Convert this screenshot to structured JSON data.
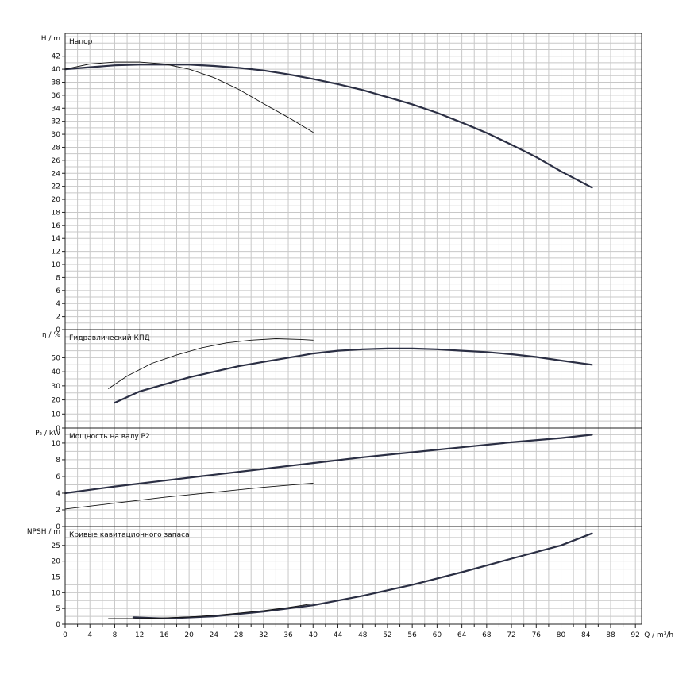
{
  "chart_data": {
    "type": "line",
    "grid": true,
    "colors": {
      "grid": "#c8c8c8",
      "frame": "#222222",
      "thick_curve": "#2b2f44",
      "thin_curve": "#111111"
    },
    "x_axis": {
      "label": "Q / m³/h",
      "range": [
        0,
        93
      ],
      "ticks": [
        0,
        4,
        8,
        12,
        16,
        20,
        24,
        28,
        32,
        36,
        40,
        44,
        48,
        52,
        56,
        60,
        64,
        68,
        72,
        76,
        80,
        84,
        88,
        92
      ],
      "tick_labels": [
        "0",
        "4",
        "8",
        "12",
        "16",
        "20",
        "24",
        "28",
        "32",
        "36",
        "40",
        "44",
        "48",
        "52",
        "56",
        "60",
        "64",
        "68",
        "72",
        "76",
        "80",
        "84",
        "88",
        "92"
      ]
    },
    "panels": [
      {
        "id": "head",
        "title": "Напор",
        "ylabel": "H / m",
        "ylim": [
          0,
          45.5
        ],
        "yticks": [
          0,
          2,
          4,
          6,
          8,
          10,
          12,
          14,
          16,
          18,
          20,
          22,
          24,
          26,
          28,
          30,
          32,
          34,
          36,
          38,
          40,
          42
        ],
        "series": [
          {
            "style": "thick",
            "x": [
              0,
              4,
              8,
              12,
              16,
              20,
              24,
              28,
              32,
              36,
              40,
              44,
              48,
              52,
              56,
              60,
              64,
              68,
              72,
              76,
              80,
              85
            ],
            "y": [
              40.0,
              40.3,
              40.6,
              40.7,
              40.7,
              40.7,
              40.5,
              40.2,
              39.8,
              39.2,
              38.5,
              37.7,
              36.8,
              35.7,
              34.6,
              33.3,
              31.8,
              30.2,
              28.4,
              26.5,
              24.3,
              21.8
            ]
          },
          {
            "style": "thin",
            "x": [
              0,
              4,
              8,
              12,
              16,
              20,
              24,
              28,
              32,
              36,
              40
            ],
            "y": [
              40.0,
              40.8,
              41.1,
              41.1,
              40.8,
              40.0,
              38.7,
              36.9,
              34.7,
              32.6,
              30.3
            ]
          }
        ]
      },
      {
        "id": "efficiency",
        "title": "Гидравлический КПД",
        "ylabel": "η / %",
        "ylim": [
          0,
          70
        ],
        "yticks": [
          0,
          10,
          20,
          30,
          40,
          50
        ],
        "ytick_labels": [
          "0",
          "10",
          "20",
          "30",
          "40",
          "50"
        ],
        "series": [
          {
            "style": "thick",
            "x": [
              8,
              12,
              16,
              20,
              24,
              28,
              32,
              36,
              40,
              44,
              48,
              52,
              56,
              60,
              64,
              68,
              72,
              76,
              80,
              85
            ],
            "y": [
              18,
              26,
              31,
              36,
              40,
              44,
              47,
              50,
              53,
              55,
              56,
              56.5,
              56.5,
              56,
              55,
              54,
              52.5,
              50.5,
              48,
              45
            ]
          },
          {
            "style": "thin",
            "x": [
              7,
              10,
              14,
              18,
              22,
              26,
              30,
              34,
              38,
              40
            ],
            "y": [
              28,
              37,
              46,
              52,
              57,
              60.5,
              62.5,
              63.5,
              63,
              62.5
            ]
          }
        ]
      },
      {
        "id": "power",
        "title": "Мощность на валу P2",
        "ylabel": "P₂ / kW",
        "ylim": [
          0,
          11.8
        ],
        "yticks": [
          0,
          2,
          4,
          6,
          8,
          10
        ],
        "series": [
          {
            "style": "thick",
            "x": [
              0,
              8,
              16,
              24,
              32,
              40,
              48,
              56,
              64,
              72,
              80,
              85
            ],
            "y": [
              4.0,
              4.8,
              5.5,
              6.2,
              6.9,
              7.6,
              8.3,
              8.9,
              9.5,
              10.1,
              10.6,
              11.0
            ]
          },
          {
            "style": "thin",
            "x": [
              0,
              8,
              16,
              24,
              32,
              40
            ],
            "y": [
              2.1,
              2.8,
              3.5,
              4.1,
              4.7,
              5.2
            ]
          }
        ]
      },
      {
        "id": "npsh",
        "title": "Кривые кавитационного запаса",
        "ylabel": "NPSH / m",
        "ylim": [
          0,
          31
        ],
        "yticks": [
          0,
          5,
          10,
          15,
          20,
          25
        ],
        "series": [
          {
            "style": "thick",
            "x": [
              11,
              16,
              24,
              32,
              40,
              48,
              56,
              64,
              72,
              80,
              85
            ],
            "y": [
              2.2,
              1.8,
              2.5,
              4.0,
              6.0,
              9.0,
              12.5,
              16.5,
              20.8,
              25.0,
              28.8
            ]
          },
          {
            "style": "thin",
            "x": [
              7,
              12,
              16,
              20,
              24,
              28,
              32,
              36,
              40
            ],
            "y": [
              1.8,
              1.8,
              2.0,
              2.3,
              2.8,
              3.5,
              4.3,
              5.3,
              6.5
            ]
          }
        ]
      }
    ]
  }
}
